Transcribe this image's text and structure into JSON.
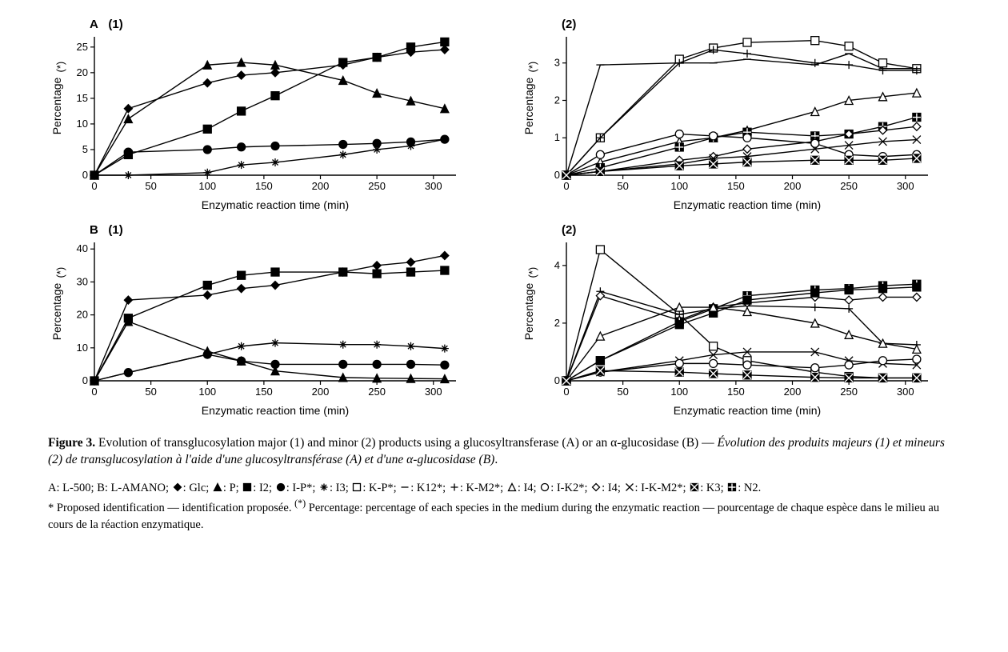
{
  "figure_label": "Figure 3.",
  "caption_en": "Evolution of transglucosylation major (1) and minor (2) products using a glucosyltransferase (A) or an α-glucosidase (B)",
  "caption_fr": "Évolution des produits majeurs (1) et mineurs (2) de transglucosylation à l'aide d'une glucosyltransférase (A) et d'une α-glucosidase (B)",
  "legend_line1_prefix": "A: L-500; B: L-AMANO; ",
  "legend_items": [
    {
      "key": "Glc",
      "marker": "diamond-filled"
    },
    {
      "key": "P",
      "marker": "triangle-filled"
    },
    {
      "key": "I2",
      "marker": "square-filled"
    },
    {
      "key": "I-P*",
      "marker": "circle-filled"
    },
    {
      "key": "I3",
      "marker": "asterisk"
    },
    {
      "key": "K-P*",
      "marker": "square-open"
    },
    {
      "key": "K12*",
      "marker": "dash"
    },
    {
      "key": "K-M2*",
      "marker": "plus"
    },
    {
      "key": "I4",
      "marker": "triangle-open"
    },
    {
      "key": "I-K2*",
      "marker": "circle-open"
    },
    {
      "key": "I4",
      "marker": "diamond-open"
    },
    {
      "key": "I-K-M2*",
      "marker": "x"
    },
    {
      "key": "K3",
      "marker": "square-x"
    },
    {
      "key": "N2",
      "marker": "square-plus"
    }
  ],
  "legend_note_en": "* Proposed identification",
  "legend_note_fr": "identification proposée",
  "legend_pct_en": "Percentage: percentage of each species in the medium during the enzymatic reaction",
  "legend_pct_fr": "pourcentage de chaque espèce dans le milieu au cours de la réaction enzymatique",
  "pct_marker": "(*)",
  "xlabel": "Enzymatic reaction time (min)",
  "ylabel": "Percentage",
  "ylabel_sup": "(*)",
  "stroke_color": "#000000",
  "background_color": "#ffffff",
  "line_width": 1.4,
  "marker_size": 5,
  "panels": {
    "A1": {
      "label_letter": "A",
      "label_num": "(1)",
      "xlim": [
        0,
        320
      ],
      "xticks": [
        0,
        50,
        100,
        150,
        200,
        250,
        300
      ],
      "ylim": [
        0,
        27
      ],
      "yticks": [
        0,
        5,
        10,
        15,
        20,
        25
      ],
      "x": [
        0,
        30,
        100,
        130,
        160,
        220,
        250,
        280,
        310
      ],
      "series": [
        {
          "marker": "diamond-filled",
          "y": [
            0,
            13,
            18,
            19.5,
            20,
            21.5,
            23,
            24,
            24.5
          ]
        },
        {
          "marker": "triangle-filled",
          "y": [
            0,
            11,
            21.5,
            22,
            21.5,
            18.5,
            16,
            14.5,
            13
          ]
        },
        {
          "marker": "square-filled",
          "y": [
            0,
            4,
            9,
            12.5,
            15.5,
            22,
            23,
            25,
            26
          ]
        },
        {
          "marker": "circle-filled",
          "y": [
            0,
            4.5,
            5,
            5.5,
            5.7,
            6,
            6.2,
            6.5,
            7
          ]
        },
        {
          "marker": "asterisk",
          "y": [
            0,
            0,
            0.5,
            2,
            2.5,
            4,
            5,
            5.7,
            7
          ]
        }
      ]
    },
    "A2": {
      "label_num": "(2)",
      "xlim": [
        0,
        320
      ],
      "xticks": [
        0,
        50,
        100,
        150,
        200,
        250,
        300
      ],
      "ylim": [
        0,
        3.7
      ],
      "yticks": [
        0,
        1,
        2,
        3
      ],
      "x": [
        0,
        30,
        100,
        130,
        160,
        220,
        250,
        280,
        310
      ],
      "series": [
        {
          "marker": "square-open",
          "y": [
            0,
            1,
            3.1,
            3.4,
            3.55,
            3.6,
            3.45,
            3.0,
            2.85
          ]
        },
        {
          "marker": "plus",
          "y": [
            0,
            1,
            3.0,
            3.35,
            3.25,
            3.0,
            2.95,
            2.8,
            2.8
          ]
        },
        {
          "marker": "dash",
          "y": [
            0,
            2.95,
            3.0,
            3.0,
            3.1,
            2.95,
            3.25,
            2.85,
            2.85
          ]
        },
        {
          "marker": "triangle-open",
          "y": [
            0,
            0.35,
            0.9,
            1.0,
            1.2,
            1.7,
            2.0,
            2.1,
            2.2
          ]
        },
        {
          "marker": "square-plus",
          "y": [
            0,
            0.2,
            0.75,
            1.0,
            1.15,
            1.05,
            1.1,
            1.3,
            1.55
          ]
        },
        {
          "marker": "diamond-open",
          "y": [
            0,
            0.1,
            0.4,
            0.5,
            0.7,
            0.9,
            1.1,
            1.2,
            1.3
          ]
        },
        {
          "marker": "circle-open",
          "y": [
            0,
            0.55,
            1.1,
            1.05,
            1.0,
            0.85,
            0.55,
            0.5,
            0.55
          ]
        },
        {
          "marker": "x",
          "y": [
            0,
            0.1,
            0.3,
            0.45,
            0.5,
            0.7,
            0.8,
            0.9,
            0.95
          ]
        },
        {
          "marker": "square-x",
          "y": [
            0,
            0.1,
            0.25,
            0.3,
            0.35,
            0.4,
            0.4,
            0.4,
            0.45
          ]
        }
      ]
    },
    "B1": {
      "label_letter": "B",
      "label_num": "(1)",
      "xlim": [
        0,
        320
      ],
      "xticks": [
        0,
        50,
        100,
        150,
        200,
        250,
        300
      ],
      "ylim": [
        0,
        42
      ],
      "yticks": [
        0,
        10,
        20,
        30,
        40
      ],
      "x": [
        0,
        30,
        100,
        130,
        160,
        220,
        250,
        280,
        310
      ],
      "series": [
        {
          "marker": "diamond-filled",
          "y": [
            0,
            24.5,
            26,
            28,
            29,
            33,
            35,
            36,
            38
          ]
        },
        {
          "marker": "square-filled",
          "y": [
            0,
            19,
            29,
            32,
            33,
            33,
            32.5,
            33,
            33.5
          ]
        },
        {
          "marker": "triangle-filled",
          "y": [
            0,
            18,
            9,
            6,
            3,
            1,
            0.8,
            0.7,
            0.6
          ]
        },
        {
          "marker": "circle-filled",
          "y": [
            0,
            2.5,
            8,
            6,
            5,
            5,
            5,
            5,
            4.8
          ]
        },
        {
          "marker": "asterisk",
          "y": [
            0,
            2.5,
            8,
            10.5,
            11.5,
            11,
            11,
            10.5,
            9.8
          ]
        }
      ]
    },
    "B2": {
      "label_num": "(2)",
      "xlim": [
        0,
        320
      ],
      "xticks": [
        0,
        50,
        100,
        150,
        200,
        250,
        300
      ],
      "ylim": [
        0,
        4.8
      ],
      "yticks": [
        0,
        2,
        4
      ],
      "x": [
        0,
        30,
        100,
        130,
        160,
        220,
        250,
        280,
        310
      ],
      "series": [
        {
          "marker": "square-open",
          "y": [
            0,
            4.55,
            2.3,
            1.2,
            0.7,
            0.3,
            0.15,
            0.1,
            0.1
          ]
        },
        {
          "marker": "plus",
          "y": [
            0,
            3.1,
            2.3,
            2.5,
            2.6,
            2.55,
            2.5,
            1.3,
            1.25
          ]
        },
        {
          "marker": "diamond-open",
          "y": [
            0,
            2.95,
            2.1,
            2.55,
            2.7,
            2.9,
            2.8,
            2.9,
            2.9
          ]
        },
        {
          "marker": "square-plus",
          "y": [
            0,
            0.7,
            2.05,
            2.5,
            2.95,
            3.15,
            3.2,
            3.3,
            3.35
          ]
        },
        {
          "marker": "square-filled",
          "y": [
            0,
            0.7,
            1.95,
            2.35,
            2.8,
            3.05,
            3.15,
            3.2,
            3.25
          ]
        },
        {
          "marker": "triangle-open",
          "y": [
            0,
            1.55,
            2.55,
            2.55,
            2.4,
            2.0,
            1.6,
            1.3,
            1.1
          ]
        },
        {
          "marker": "x",
          "y": [
            0,
            0.3,
            0.7,
            0.9,
            1.0,
            1.0,
            0.7,
            0.6,
            0.55
          ]
        },
        {
          "marker": "circle-open",
          "y": [
            0,
            0.3,
            0.6,
            0.6,
            0.55,
            0.45,
            0.55,
            0.7,
            0.75
          ]
        },
        {
          "marker": "square-x",
          "y": [
            0,
            0.35,
            0.3,
            0.25,
            0.2,
            0.12,
            0.1,
            0.1,
            0.1
          ]
        }
      ]
    }
  }
}
